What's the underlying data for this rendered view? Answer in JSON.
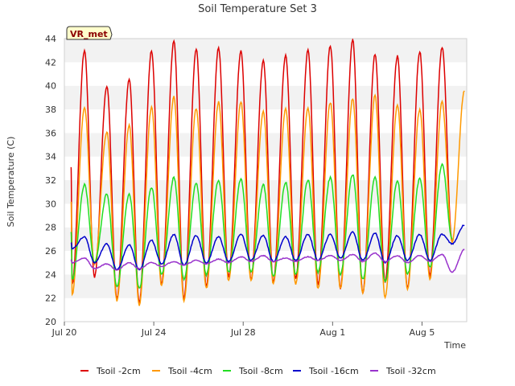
{
  "chart_data": {
    "type": "line",
    "title": "Soil Temperature Set 3",
    "xlabel": "Time",
    "ylabel": "Soil Temperature (C)",
    "badge": "VR_met",
    "ylim": [
      20,
      44
    ],
    "yticks": [
      20,
      22,
      24,
      26,
      28,
      30,
      32,
      34,
      36,
      38,
      40,
      42,
      44
    ],
    "xlim_days": [
      0,
      18
    ],
    "xticks": [
      {
        "label": "Jul 20",
        "day": 0
      },
      {
        "label": "Jul 24",
        "day": 4
      },
      {
        "label": "Jul 28",
        "day": 8
      },
      {
        "label": "Aug 1",
        "day": 12
      },
      {
        "label": "Aug 5",
        "day": 16
      }
    ],
    "grid": "horizontal bands",
    "legend_position": "bottom",
    "peak_day_offset": 0.9,
    "start_day_offset": 0.3,
    "series": [
      {
        "name": "Tsoil -2cm",
        "color": "#dd0000",
        "maxima": [
          43.0,
          40.0,
          40.6,
          43.0,
          43.8,
          43.1,
          43.2,
          43.0,
          42.1,
          42.6,
          43.0,
          43.4,
          43.9,
          42.7,
          42.5,
          42.9,
          43.3
        ],
        "minima": [
          23.2,
          23.8,
          22.0,
          21.6,
          23.2,
          22.0,
          23.0,
          23.8,
          23.6,
          23.4,
          23.6,
          23.2,
          22.8,
          22.4,
          23.4,
          22.8,
          24.0,
          26.8
        ]
      },
      {
        "name": "Tsoil -4cm",
        "color": "#ff9900",
        "maxima": [
          38.2,
          36.1,
          36.6,
          38.2,
          39.1,
          38.1,
          38.6,
          38.6,
          37.8,
          38.0,
          38.1,
          38.6,
          38.9,
          39.2,
          38.4,
          38.0,
          38.6,
          39.6
        ],
        "minima": [
          22.3,
          24.8,
          21.8,
          21.4,
          23.0,
          21.8,
          22.8,
          23.5,
          23.5,
          23.2,
          23.2,
          22.8,
          22.8,
          22.4,
          22.0,
          22.8,
          23.6,
          26.8
        ]
      },
      {
        "name": "Tsoil -8cm",
        "color": "#22dd22",
        "maxima": [
          31.6,
          30.8,
          30.8,
          31.4,
          32.2,
          31.7,
          32.0,
          32.1,
          31.6,
          31.8,
          32.0,
          32.2,
          32.5,
          32.2,
          31.9,
          32.1,
          33.3
        ],
        "minima": [
          23.6,
          25.0,
          23.0,
          22.8,
          24.0,
          23.6,
          24.0,
          24.2,
          24.2,
          23.8,
          24.0,
          24.2,
          24.0,
          23.6,
          23.4,
          24.0,
          24.6,
          27.0
        ]
      },
      {
        "name": "Tsoil -16cm",
        "color": "#0000cc",
        "maxima": [
          27.2,
          26.6,
          26.5,
          26.9,
          27.4,
          27.3,
          27.2,
          27.4,
          27.3,
          27.2,
          27.4,
          27.4,
          27.6,
          27.5,
          27.3,
          27.4,
          27.4,
          28.2
        ],
        "minima": [
          26.2,
          25.0,
          24.4,
          24.4,
          24.9,
          24.8,
          25.0,
          25.1,
          25.2,
          25.1,
          25.2,
          25.2,
          25.4,
          25.2,
          25.0,
          25.2,
          25.2,
          26.6
        ]
      },
      {
        "name": "Tsoil -32cm",
        "color": "#9933cc",
        "maxima": [
          25.4,
          24.9,
          25.0,
          25.0,
          25.1,
          25.2,
          25.3,
          25.5,
          25.6,
          25.4,
          25.5,
          25.6,
          25.7,
          25.8,
          25.6,
          25.6,
          25.7,
          26.1
        ],
        "minima": [
          25.0,
          24.5,
          24.4,
          24.5,
          24.7,
          24.8,
          24.9,
          25.0,
          25.1,
          25.1,
          25.1,
          25.2,
          25.2,
          25.1,
          25.1,
          25.0,
          25.1,
          24.2
        ]
      }
    ]
  }
}
